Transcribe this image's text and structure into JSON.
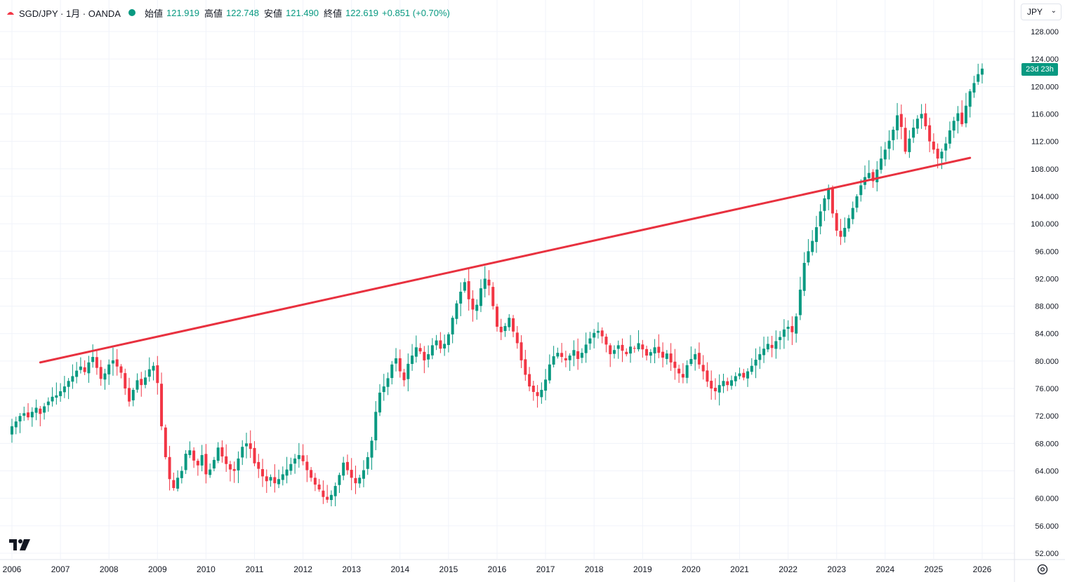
{
  "header": {
    "symbol": "SGD/JPY · 1月 · OANDA",
    "open_label": "始値",
    "open_value": "121.919",
    "high_label": "高値",
    "high_value": "122.748",
    "low_label": "安値",
    "low_value": "121.490",
    "close_label": "終値",
    "close_value": "122.619",
    "change": "+0.851 (+0.70%)"
  },
  "currency_button": {
    "label": "JPY"
  },
  "countdown_tag": "23d 23h",
  "icons": {
    "brand": "tradingview-logo-icon",
    "settings": "gear-icon",
    "series": "candle-icon"
  },
  "colors": {
    "up": "#089981",
    "down": "#f23645",
    "trendline": "#e8313f",
    "grid": "#f0f3fa",
    "text": "#131722"
  },
  "chart_data": {
    "type": "candlestick",
    "title": "SGD/JPY · 1月 · OANDA",
    "interval": "1 month",
    "ylim": [
      50,
      128
    ],
    "y_ticks": [
      "128.000",
      "124.000",
      "120.000",
      "116.000",
      "112.000",
      "108.000",
      "104.000",
      "100.000",
      "96.000",
      "92.000",
      "88.000",
      "84.000",
      "80.000",
      "76.000",
      "72.000",
      "68.000",
      "64.000",
      "60.000",
      "56.000",
      "52.000"
    ],
    "x_ticks": [
      "2006",
      "2007",
      "2008",
      "2009",
      "2010",
      "2011",
      "2012",
      "2013",
      "2014",
      "2015",
      "2016",
      "2017",
      "2018",
      "2019",
      "2020",
      "2021",
      "2022",
      "2023",
      "2024",
      "2025",
      "2026"
    ],
    "start": "2006-01",
    "closes": [
      70.5,
      71.2,
      72.0,
      72.4,
      71.8,
      72.6,
      73.2,
      72.3,
      73.4,
      74.1,
      74.8,
      75.0,
      75.6,
      76.3,
      77.1,
      77.8,
      78.6,
      79.2,
      78.4,
      79.8,
      80.6,
      79.0,
      77.4,
      78.2,
      79.5,
      80.1,
      79.2,
      78.3,
      76.0,
      74.1,
      75.8,
      77.2,
      76.5,
      77.6,
      78.8,
      79.3,
      76.8,
      70.5,
      66.0,
      62.8,
      61.5,
      63.0,
      64.0,
      66.5,
      67.0,
      65.5,
      64.8,
      66.3,
      63.5,
      64.2,
      65.6,
      67.4,
      66.1,
      65.0,
      64.2,
      64.0,
      65.8,
      67.5,
      68.0,
      67.2,
      65.1,
      64.3,
      63.2,
      62.5,
      63.1,
      62.2,
      62.8,
      63.5,
      64.2,
      65.0,
      65.8,
      66.3,
      65.4,
      64.1,
      63.0,
      62.0,
      61.3,
      60.2,
      59.8,
      60.5,
      61.8,
      63.4,
      65.2,
      64.1,
      63.0,
      62.2,
      63.0,
      64.1,
      66.0,
      68.4,
      72.6,
      75.4,
      76.3,
      77.5,
      79.5,
      80.4,
      78.5,
      77.2,
      79.6,
      80.8,
      82.0,
      81.4,
      80.1,
      81.0,
      82.3,
      83.0,
      81.8,
      82.5,
      83.9,
      86.3,
      88.4,
      90.1,
      91.5,
      89.0,
      87.5,
      88.2,
      90.6,
      92.0,
      91.0,
      88.0,
      85.0,
      84.2,
      85.1,
      86.3,
      84.3,
      82.6,
      80.1,
      78.0,
      76.3,
      75.5,
      74.9,
      75.8,
      77.3,
      79.5,
      80.7,
      81.2,
      80.6,
      80.1,
      80.8,
      81.6,
      80.3,
      81.2,
      82.4,
      83.3,
      84.1,
      84.4,
      83.6,
      82.4,
      81.0,
      81.6,
      82.3,
      81.5,
      81.0,
      82.1,
      81.8,
      82.6,
      81.7,
      80.8,
      81.3,
      82.0,
      81.2,
      80.5,
      81.1,
      79.8,
      79.0,
      78.2,
      77.6,
      79.4,
      80.3,
      81.0,
      79.5,
      78.5,
      77.0,
      76.0,
      75.6,
      76.5,
      77.1,
      76.5,
      77.2,
      77.8,
      78.2,
      77.6,
      78.5,
      79.3,
      80.2,
      81.0,
      81.8,
      82.5,
      81.9,
      82.9,
      83.5,
      84.6,
      85.0,
      84.2,
      86.5,
      90.4,
      94.3,
      96.0,
      97.5,
      99.5,
      101.8,
      103.7,
      105.2,
      101.5,
      99.0,
      98.1,
      99.4,
      100.8,
      102.3,
      104.0,
      105.6,
      106.8,
      107.4,
      106.2,
      107.9,
      109.5,
      110.8,
      112.1,
      113.7,
      115.8,
      114.1,
      110.5,
      112.4,
      114.0,
      115.3,
      116.0,
      114.2,
      112.0,
      110.8,
      109.5,
      110.5,
      111.7,
      113.6,
      115.0,
      116.1,
      114.5,
      117.2,
      119.3,
      120.5,
      121.8,
      122.6
    ],
    "trendline": {
      "from": {
        "date": "2006-08",
        "value": 79.8
      },
      "to": {
        "date": "2025-10",
        "value": 109.6
      }
    }
  }
}
